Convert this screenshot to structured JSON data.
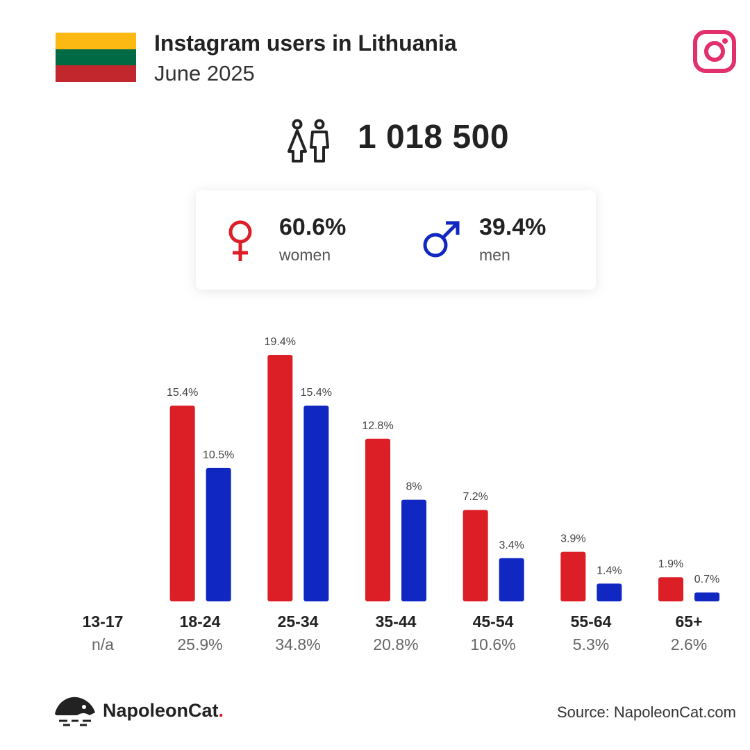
{
  "header": {
    "title": "Instagram users in Lithuania",
    "subtitle": "June 2025",
    "flag_colors": [
      "#FDB913",
      "#006A44",
      "#C1272D"
    ],
    "platform_icon": "instagram-icon"
  },
  "summary": {
    "total_users": "1 018 500",
    "icon": "users-icon"
  },
  "gender": {
    "women": {
      "pct": "60.6%",
      "label": "women",
      "icon": "female-icon",
      "color": "#DC1F26"
    },
    "men": {
      "pct": "39.4%",
      "label": "men",
      "icon": "male-icon",
      "color": "#1027C2"
    }
  },
  "chart_data": {
    "type": "bar",
    "categories": [
      "13-17",
      "18-24",
      "25-34",
      "35-44",
      "45-54",
      "55-64",
      "65+"
    ],
    "category_totals": [
      "n/a",
      "25.9%",
      "34.8%",
      "20.8%",
      "10.6%",
      "5.3%",
      "2.6%"
    ],
    "series": [
      {
        "color": "#DC1F26",
        "values": [
          null,
          15.4,
          19.4,
          12.8,
          7.2,
          3.9,
          1.9
        ],
        "labels": [
          "",
          "15.4%",
          "19.4%",
          "12.8%",
          "7.2%",
          "3.9%",
          "1.9%"
        ]
      },
      {
        "color": "#1027C2",
        "values": [
          null,
          10.5,
          15.4,
          8,
          3.4,
          1.4,
          0.7
        ],
        "labels": [
          "",
          "10.5%",
          "15.4%",
          "8%",
          "3.4%",
          "1.4%",
          "0.7%"
        ]
      }
    ],
    "ylim": [
      0,
      20
    ],
    "grid": false
  },
  "footer": {
    "brand": "NapoleonCat",
    "brand_dot": ".",
    "source": "Source: NapoleonCat.com"
  }
}
